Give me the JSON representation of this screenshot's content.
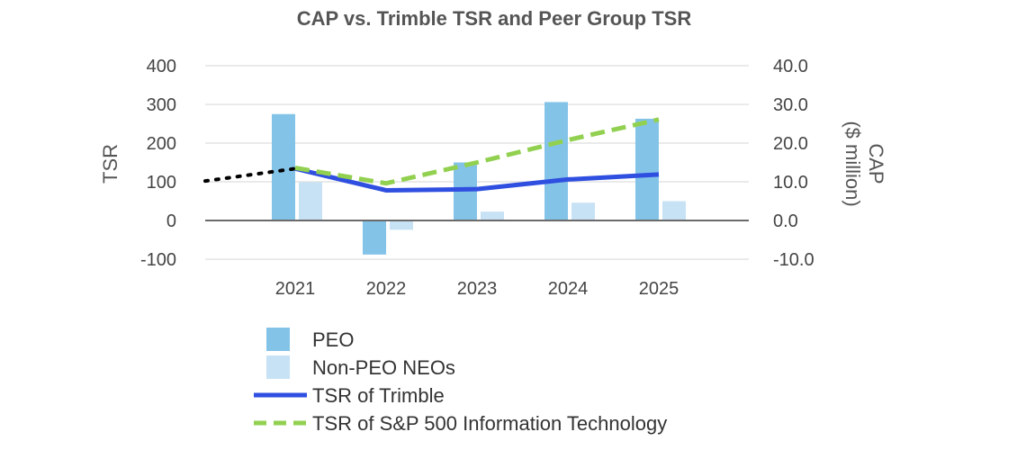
{
  "chart_data": {
    "type": "bar",
    "title": "CAP vs. Trimble TSR and Peer Group TSR",
    "categories": [
      "2021",
      "2022",
      "2023",
      "2024",
      "2025"
    ],
    "y_left": {
      "label": "TSR",
      "range": [
        -100,
        400
      ],
      "ticks": [
        "-100",
        "0",
        "100",
        "200",
        "300",
        "400"
      ]
    },
    "y_right": {
      "label": "CAP",
      "label2": "($ million)",
      "range": [
        -10,
        40
      ],
      "ticks": [
        "-10.0",
        "0.0",
        "10.0",
        "20.0",
        "30.0",
        "40.0"
      ]
    },
    "bar_series": [
      {
        "name": "PEO",
        "color": "#84c3e8",
        "axis": "right",
        "values": [
          27.5,
          -8.8,
          15.0,
          30.6,
          26.3
        ]
      },
      {
        "name": "Non-PEO NEOs",
        "color": "#c8e2f5",
        "axis": "right",
        "values": [
          9.9,
          -2.4,
          2.3,
          4.6,
          5.0
        ]
      }
    ],
    "line_series": [
      {
        "name": "TSR of Trimble",
        "color": "#2f4fe0",
        "style": "solid",
        "axis": "left",
        "values": [
          134,
          78,
          81,
          106,
          119
        ]
      },
      {
        "name": "TSR of S&P 500 Information Technology",
        "color": "#92d050",
        "style": "dashed",
        "axis": "left",
        "values": [
          136,
          96,
          150,
          208,
          261
        ]
      }
    ],
    "baseline_segment": {
      "color": "#000000",
      "style": "dotted",
      "start_value": 102,
      "end_value": 134
    },
    "legend": [
      {
        "label": "PEO",
        "kind": "box",
        "color": "#84c3e8"
      },
      {
        "label": "Non-PEO NEOs",
        "kind": "box",
        "color": "#c8e2f5"
      },
      {
        "label": "TSR of Trimble",
        "kind": "line",
        "color": "#2f4fe0"
      },
      {
        "label": "TSR of S&P 500 Information Technology",
        "kind": "dash",
        "color": "#92d050"
      }
    ]
  }
}
